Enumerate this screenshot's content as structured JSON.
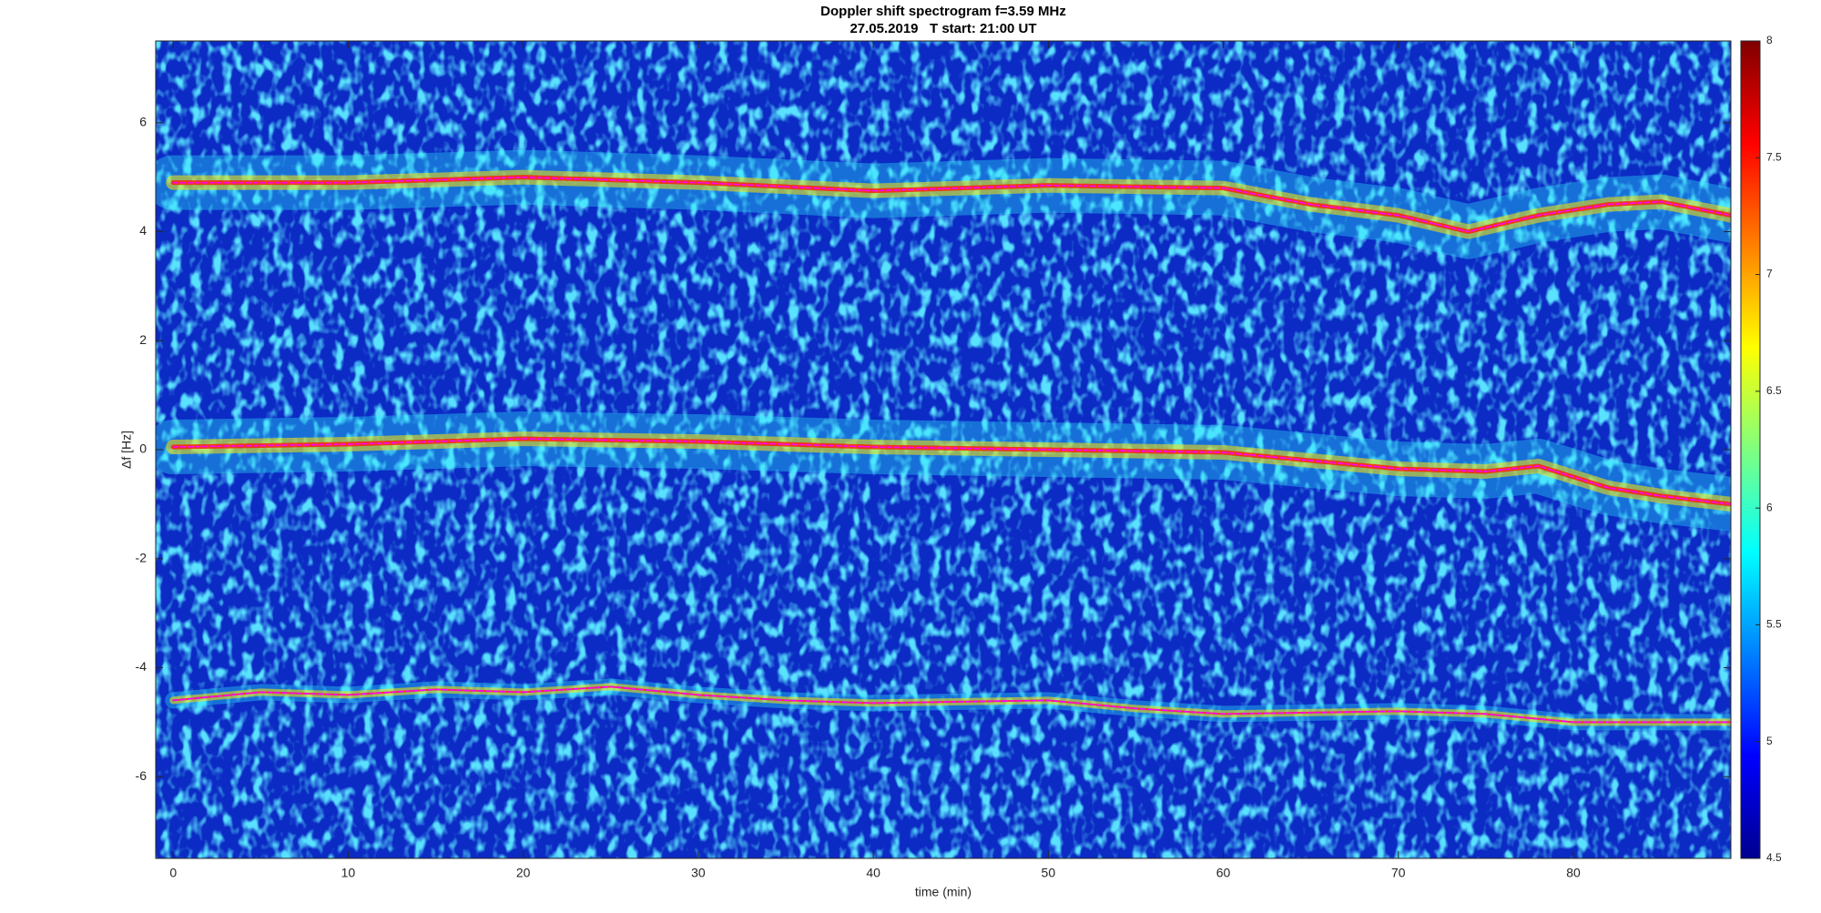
{
  "chart_data": {
    "type": "spectrogram",
    "title": "Doppler shift spectrogram f=3.59 MHz",
    "subtitle": "27.05.2019   T start: 21:00 UT",
    "x_label": "time (min)",
    "y_label": "Δf [Hz]",
    "xlim": [
      -1,
      89
    ],
    "xticks": [
      0,
      10,
      20,
      30,
      40,
      50,
      60,
      70,
      80
    ],
    "ylim": [
      -7.5,
      7.5
    ],
    "yticks": [
      -6,
      -4,
      -2,
      0,
      2,
      4,
      6
    ],
    "colorbar": {
      "colormap": "jet",
      "lim": [
        4.5,
        8
      ],
      "ticks": [
        4.5,
        5,
        5.5,
        6,
        6.5,
        7,
        7.5,
        8
      ]
    },
    "series": [
      {
        "color": "#ff00ff",
        "x": [
          0,
          10,
          20,
          30,
          40,
          50,
          60,
          65,
          70,
          74,
          78,
          82,
          85,
          89
        ],
        "values": [
          4.9,
          4.9,
          5.0,
          4.9,
          4.75,
          4.85,
          4.8,
          4.5,
          4.3,
          4.0,
          4.3,
          4.5,
          4.55,
          4.3
        ]
      },
      {
        "color": "#ff00ff",
        "x": [
          0,
          10,
          20,
          30,
          40,
          50,
          60,
          65,
          70,
          75,
          78,
          80,
          82,
          85,
          89
        ],
        "values": [
          0.05,
          0.1,
          0.2,
          0.15,
          0.05,
          0.0,
          -0.05,
          -0.2,
          -0.35,
          -0.4,
          -0.3,
          -0.5,
          -0.7,
          -0.85,
          -1.0
        ]
      },
      {
        "color": "#ff00ff",
        "x": [
          0,
          5,
          10,
          15,
          20,
          25,
          30,
          35,
          40,
          50,
          55,
          60,
          70,
          75,
          80,
          85,
          89
        ],
        "values": [
          -4.6,
          -4.45,
          -4.5,
          -4.4,
          -4.45,
          -4.35,
          -4.5,
          -4.6,
          -4.65,
          -4.6,
          -4.75,
          -4.85,
          -4.8,
          -4.85,
          -5.0,
          -5.0,
          -5.0
        ]
      }
    ]
  }
}
